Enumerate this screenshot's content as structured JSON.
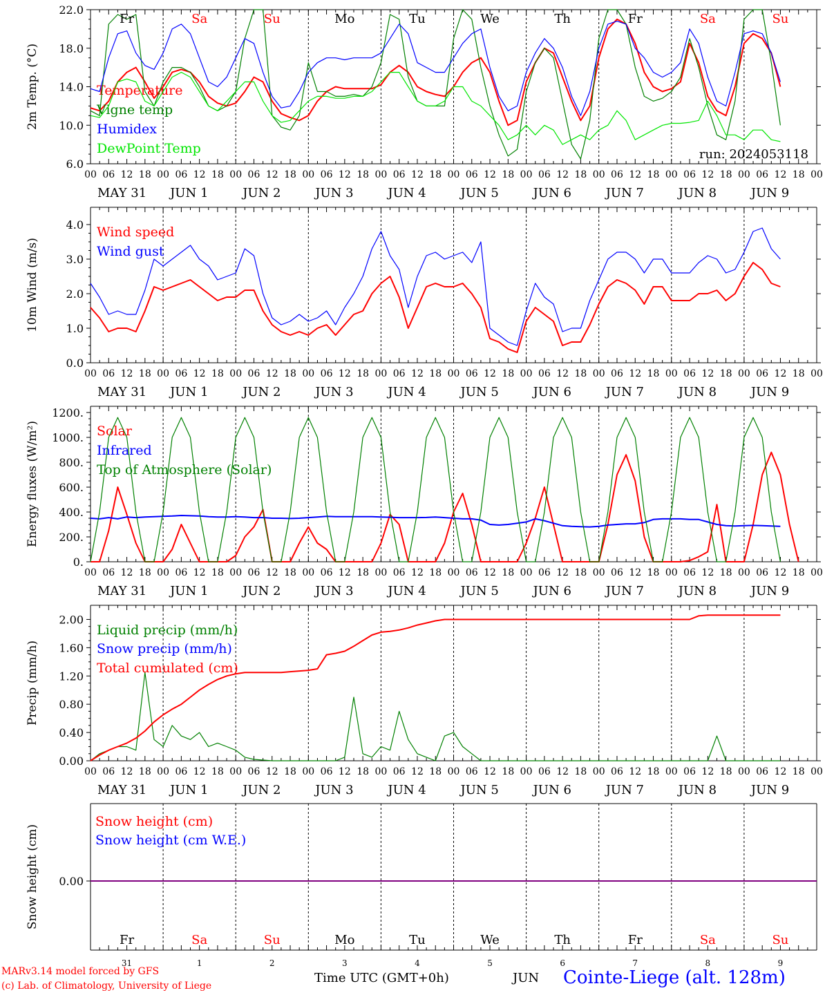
{
  "meta": {
    "run_label": "run: 2024053118",
    "credit_line1": "MARv3.14 model forced by GFS",
    "credit_line2": "(c) Lab. of Climatology, University of Liege",
    "x_axis_label": "Time UTC (GMT+0h)",
    "month_label": "JUN",
    "station_label": "Cointe-Liege (alt. 128m)"
  },
  "colors": {
    "red": "#ff0000",
    "green": "#008000",
    "blue": "#0000ff",
    "lightgreen": "#00e600",
    "purple": "#800080",
    "weekend": "#ff0000",
    "weekday": "#000000"
  },
  "timeline": {
    "hour_ticks": [
      "00",
      "06",
      "12",
      "18"
    ],
    "last_tick": "00",
    "day_labels": [
      "MAY 31",
      "JUN  1",
      "JUN  2",
      "JUN  3",
      "JUN  4",
      "JUN  5",
      "JUN  6",
      "JUN  7",
      "JUN  8",
      "JUN  9"
    ],
    "weekdays": [
      "Fr",
      "Sa",
      "Su",
      "Mo",
      "Tu",
      "We",
      "Th",
      "Fr",
      "Sa",
      "Su"
    ],
    "weekend": [
      false,
      true,
      true,
      false,
      false,
      false,
      false,
      false,
      true,
      true
    ],
    "day_numbers": [
      "31",
      "1",
      "2",
      "3",
      "4",
      "5",
      "6",
      "7",
      "8",
      "9"
    ]
  },
  "chart_data": [
    {
      "type": "line",
      "ylabel": "2m Temp. (°C)",
      "ylim": [
        6.0,
        22.0
      ],
      "yticks": [
        "6.0",
        "10.0",
        "14.0",
        "18.0",
        "22.0"
      ],
      "x": "hours since first tick (3-hourly)",
      "series": [
        {
          "name": "Temperature",
          "color": "red",
          "values": [
            11.8,
            11.5,
            12.5,
            14.5,
            15.5,
            16.0,
            14.5,
            12.8,
            14.0,
            15.5,
            15.8,
            15.5,
            14.5,
            13.0,
            12.3,
            12.0,
            12.3,
            13.5,
            15.0,
            14.5,
            12.5,
            11.2,
            10.8,
            10.5,
            11.0,
            12.5,
            13.5,
            14.0,
            13.8,
            13.8,
            13.8,
            13.8,
            14.2,
            15.5,
            16.2,
            15.5,
            14.0,
            13.5,
            13.2,
            13.0,
            14.0,
            15.5,
            16.5,
            17.0,
            15.5,
            12.5,
            10.0,
            10.5,
            14.5,
            16.5,
            18.0,
            17.5,
            15.0,
            12.5,
            10.5,
            12.0,
            17.0,
            20.0,
            21.0,
            20.5,
            18.5,
            15.5,
            14.0,
            13.5,
            13.8,
            14.5,
            18.5,
            16.5,
            13.0,
            11.5,
            11.0,
            14.0,
            18.5,
            19.5,
            19.0,
            17.5,
            14.0
          ]
        },
        {
          "name": "Vigne temp",
          "color": "green",
          "values": [
            11.5,
            11.0,
            20.5,
            21.5,
            21.0,
            21.5,
            13.5,
            12.0,
            14.5,
            16.0,
            16.0,
            15.5,
            14.0,
            12.0,
            11.5,
            12.0,
            13.5,
            19.0,
            22.5,
            22.0,
            11.0,
            9.8,
            9.5,
            11.0,
            16.5,
            13.5,
            13.5,
            13.0,
            13.0,
            13.2,
            13.0,
            14.0,
            16.5,
            21.5,
            21.0,
            15.0,
            12.5,
            12.0,
            12.0,
            12.0,
            19.0,
            22.0,
            21.0,
            16.0,
            12.0,
            9.0,
            6.8,
            7.5,
            13.5,
            16.5,
            18.0,
            17.0,
            12.5,
            8.0,
            6.5,
            10.5,
            19.0,
            22.5,
            22.0,
            20.5,
            16.0,
            13.0,
            12.5,
            12.8,
            13.5,
            15.0,
            19.0,
            16.0,
            12.0,
            9.0,
            8.5,
            12.5,
            21.0,
            22.5,
            22.5,
            16.5,
            10.0
          ]
        },
        {
          "name": "Humidex",
          "color": "blue",
          "values": [
            13.8,
            13.5,
            17.0,
            19.5,
            19.8,
            17.5,
            16.2,
            15.8,
            17.5,
            20.0,
            20.5,
            19.5,
            17.0,
            14.5,
            14.0,
            15.0,
            17.0,
            19.0,
            18.5,
            15.5,
            13.0,
            11.8,
            12.0,
            13.5,
            15.5,
            16.5,
            17.0,
            17.0,
            16.8,
            17.0,
            17.0,
            17.0,
            17.5,
            19.0,
            20.5,
            19.5,
            16.5,
            16.0,
            15.5,
            15.5,
            17.0,
            18.5,
            19.5,
            20.0,
            16.0,
            13.0,
            11.5,
            12.0,
            15.5,
            17.5,
            19.0,
            18.0,
            16.0,
            13.0,
            11.0,
            13.5,
            18.0,
            20.5,
            20.8,
            20.5,
            18.0,
            17.0,
            15.5,
            15.0,
            15.5,
            16.5,
            20.0,
            18.5,
            15.0,
            12.5,
            12.0,
            15.5,
            19.5,
            19.8,
            19.5,
            17.5,
            14.5
          ]
        },
        {
          "name": "DewPoint Temp",
          "color": "lightgreen",
          "values": [
            11.0,
            10.8,
            12.0,
            14.5,
            14.8,
            14.5,
            12.5,
            12.0,
            13.5,
            15.0,
            15.5,
            15.0,
            13.5,
            12.0,
            11.5,
            12.5,
            13.5,
            14.5,
            14.5,
            12.5,
            11.0,
            10.3,
            10.5,
            11.5,
            12.5,
            13.0,
            13.0,
            12.8,
            12.8,
            13.0,
            13.0,
            13.5,
            14.5,
            15.5,
            15.5,
            14.0,
            12.5,
            12.0,
            12.0,
            12.5,
            14.0,
            14.0,
            12.5,
            12.0,
            11.0,
            10.0,
            8.5,
            9.0,
            10.0,
            9.0,
            10.0,
            9.5,
            8.0,
            8.5,
            9.0,
            8.5,
            9.5,
            10.0,
            11.5,
            10.5,
            8.5,
            9.0,
            9.5,
            10.0,
            10.2,
            10.2,
            10.3,
            10.5,
            12.5,
            11.0,
            9.0,
            9.0,
            8.5,
            9.5,
            9.5,
            8.5,
            8.3
          ]
        }
      ]
    },
    {
      "type": "line",
      "ylabel": "10m Wind (m/s)",
      "ylim": [
        0.0,
        4.5
      ],
      "yticks": [
        "0.0",
        "1.0",
        "2.0",
        "3.0",
        "4.0"
      ],
      "series": [
        {
          "name": "Wind speed",
          "color": "red",
          "values": [
            1.6,
            1.3,
            0.9,
            1.0,
            1.0,
            0.9,
            1.5,
            2.2,
            2.1,
            2.2,
            2.3,
            2.4,
            2.2,
            2.0,
            1.8,
            1.9,
            1.9,
            2.1,
            2.1,
            1.5,
            1.1,
            0.9,
            0.8,
            0.9,
            0.8,
            1.0,
            1.1,
            0.8,
            1.1,
            1.4,
            1.5,
            2.0,
            2.3,
            2.5,
            1.9,
            1.0,
            1.6,
            2.2,
            2.3,
            2.2,
            2.2,
            2.3,
            2.0,
            1.6,
            0.7,
            0.6,
            0.4,
            0.3,
            1.2,
            1.6,
            1.4,
            1.2,
            0.5,
            0.6,
            0.6,
            1.1,
            1.7,
            2.2,
            2.4,
            2.3,
            2.1,
            1.7,
            2.2,
            2.2,
            1.8,
            1.8,
            1.8,
            2.0,
            2.0,
            2.1,
            1.8,
            2.0,
            2.5,
            2.9,
            2.7,
            2.3,
            2.2
          ]
        },
        {
          "name": "Wind gust",
          "color": "blue",
          "values": [
            2.3,
            1.9,
            1.4,
            1.5,
            1.4,
            1.4,
            2.1,
            3.0,
            2.8,
            3.0,
            3.2,
            3.4,
            3.0,
            2.8,
            2.4,
            2.5,
            2.6,
            3.3,
            3.1,
            2.0,
            1.3,
            1.1,
            1.2,
            1.4,
            1.2,
            1.3,
            1.5,
            1.1,
            1.6,
            2.0,
            2.5,
            3.3,
            3.8,
            3.1,
            2.7,
            1.6,
            2.5,
            3.1,
            3.2,
            3.0,
            3.1,
            3.2,
            2.9,
            3.5,
            1.0,
            0.8,
            0.6,
            0.5,
            1.5,
            2.3,
            1.9,
            1.7,
            0.9,
            1.0,
            1.0,
            1.8,
            2.4,
            3.0,
            3.2,
            3.2,
            3.0,
            2.6,
            3.0,
            3.0,
            2.6,
            2.6,
            2.6,
            2.9,
            3.1,
            3.0,
            2.6,
            2.7,
            3.2,
            3.8,
            3.9,
            3.3,
            3.0
          ]
        }
      ]
    },
    {
      "type": "line",
      "ylabel": "Energy fluxes (W/m²)",
      "ylim": [
        0,
        1250
      ],
      "yticks": [
        "0.",
        "200.",
        "400.",
        "600.",
        "800.",
        "1000.",
        "1200."
      ],
      "series": [
        {
          "name": "Solar",
          "color": "red",
          "values": [
            0,
            0,
            250,
            600,
            380,
            150,
            0,
            0,
            0,
            100,
            300,
            150,
            0,
            0,
            0,
            0,
            50,
            200,
            280,
            420,
            0,
            0,
            0,
            150,
            280,
            150,
            100,
            0,
            0,
            0,
            0,
            0,
            150,
            380,
            300,
            0,
            0,
            0,
            0,
            150,
            400,
            550,
            300,
            0,
            0,
            0,
            0,
            0,
            150,
            350,
            600,
            300,
            0,
            0,
            0,
            0,
            0,
            300,
            700,
            860,
            650,
            200,
            0,
            0,
            0,
            0,
            10,
            40,
            80,
            460,
            0,
            0,
            0,
            300,
            700,
            880,
            700,
            300,
            0
          ]
        },
        {
          "name": "Infrared",
          "color": "blue",
          "values": [
            350,
            345,
            355,
            345,
            360,
            355,
            360,
            362,
            365,
            368,
            372,
            370,
            368,
            362,
            360,
            360,
            362,
            360,
            355,
            355,
            350,
            350,
            348,
            350,
            355,
            360,
            365,
            362,
            362,
            362,
            362,
            362,
            360,
            358,
            355,
            355,
            355,
            356,
            360,
            355,
            350,
            345,
            345,
            335,
            300,
            295,
            300,
            310,
            320,
            345,
            330,
            310,
            290,
            285,
            282,
            280,
            285,
            295,
            300,
            305,
            305,
            315,
            340,
            345,
            345,
            345,
            340,
            340,
            320,
            300,
            290,
            288,
            290,
            292,
            290,
            288,
            285
          ]
        },
        {
          "name": "Top of Atmosphere (Solar)",
          "color": "green",
          "values": [
            0,
            400,
            1000,
            1160,
            1000,
            400,
            0,
            0,
            400,
            1000,
            1160,
            1000,
            400,
            0,
            0,
            400,
            1000,
            1160,
            1000,
            400,
            0,
            0,
            400,
            1000,
            1160,
            1000,
            400,
            0,
            0,
            400,
            1000,
            1160,
            1000,
            400,
            0,
            0,
            400,
            1000,
            1160,
            1000,
            400,
            0,
            0,
            400,
            1000,
            1160,
            1000,
            400,
            0,
            0,
            400,
            1000,
            1160,
            1000,
            400,
            0,
            0,
            400,
            1000,
            1160,
            1000,
            400,
            0,
            0,
            400,
            1000,
            1160,
            1000,
            400,
            0,
            0,
            400,
            1000,
            1160,
            1000,
            400,
            0
          ]
        }
      ]
    },
    {
      "type": "line",
      "ylabel": "Precip (mm/h)",
      "ylim": [
        0.0,
        2.2
      ],
      "yticks": [
        "0.00",
        "0.40",
        "0.80",
        "1.20",
        "1.60",
        "2.00"
      ],
      "series": [
        {
          "name": "Liquid precip (mm/h)",
          "color": "green",
          "values": [
            0.0,
            0.1,
            0.15,
            0.2,
            0.2,
            0.15,
            1.25,
            0.3,
            0.2,
            0.5,
            0.35,
            0.3,
            0.4,
            0.2,
            0.25,
            0.2,
            0.15,
            0.05,
            0.02,
            0.01,
            0.0,
            0.0,
            0.0,
            0.0,
            0.0,
            0.0,
            0.0,
            0.0,
            0.05,
            0.9,
            0.1,
            0.05,
            0.2,
            0.15,
            0.7,
            0.3,
            0.1,
            0.05,
            0.0,
            0.35,
            0.4,
            0.2,
            0.1,
            0.0,
            0.0,
            0.0,
            0.0,
            0.0,
            0.0,
            0.0,
            0.0,
            0.0,
            0.0,
            0.0,
            0.0,
            0.0,
            0.0,
            0.0,
            0.0,
            0.0,
            0.0,
            0.0,
            0.0,
            0.0,
            0.0,
            0.0,
            0.0,
            0.0,
            0.0,
            0.35,
            0.0,
            0.0,
            0.0,
            0.0,
            0.0,
            0.0,
            0.0
          ]
        },
        {
          "name": "Snow precip (mm/h)",
          "color": "blue",
          "values": []
        },
        {
          "name": "Total cumulated (cm)",
          "color": "red",
          "values": [
            0.0,
            0.08,
            0.15,
            0.2,
            0.25,
            0.32,
            0.42,
            0.55,
            0.65,
            0.73,
            0.8,
            0.9,
            1.0,
            1.08,
            1.15,
            1.2,
            1.23,
            1.25,
            1.25,
            1.25,
            1.25,
            1.25,
            1.26,
            1.27,
            1.28,
            1.3,
            1.5,
            1.52,
            1.55,
            1.62,
            1.7,
            1.78,
            1.82,
            1.83,
            1.85,
            1.88,
            1.92,
            1.95,
            1.98,
            2.0,
            2.0,
            2.0,
            2.0,
            2.0,
            2.0,
            2.0,
            2.0,
            2.0,
            2.0,
            2.0,
            2.0,
            2.0,
            2.0,
            2.0,
            2.0,
            2.0,
            2.0,
            2.0,
            2.0,
            2.0,
            2.0,
            2.0,
            2.0,
            2.0,
            2.0,
            2.0,
            2.0,
            2.05,
            2.06,
            2.06,
            2.06,
            2.06,
            2.06,
            2.06,
            2.06,
            2.06,
            2.06
          ]
        }
      ]
    },
    {
      "type": "line",
      "ylabel": "Snow height (cm)",
      "yticks": [
        "0.00"
      ],
      "series": [
        {
          "name": "Snow height (cm)",
          "color": "red",
          "values": [
            0,
            0
          ]
        },
        {
          "name": "Snow height (cm W.E.)",
          "color": "blue",
          "values": [
            0,
            0
          ]
        }
      ]
    }
  ]
}
